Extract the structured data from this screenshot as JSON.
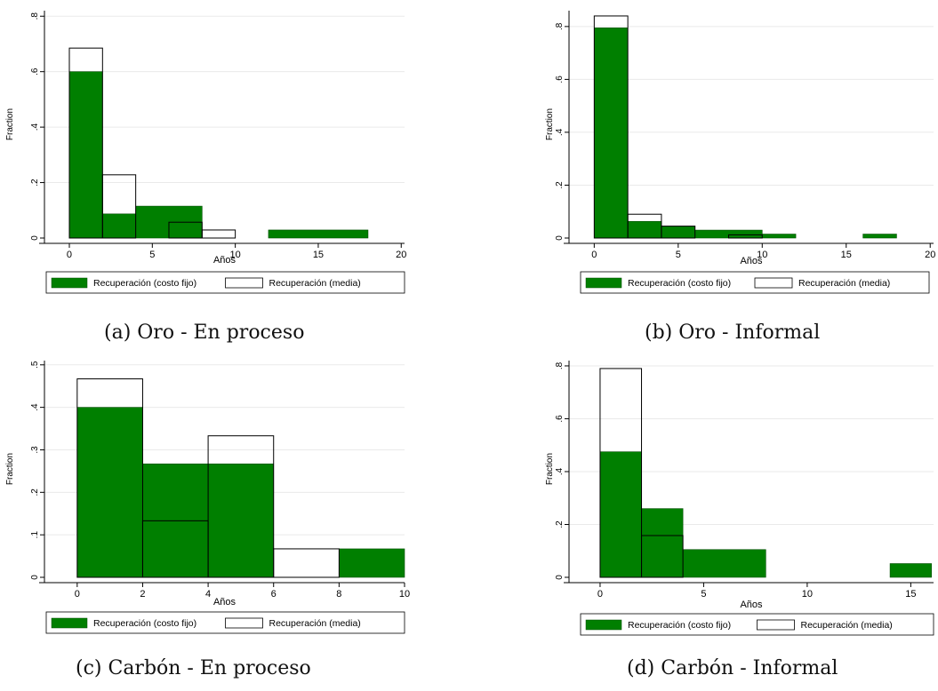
{
  "legend": {
    "fixed_label": "Recuperación (costo fijo)",
    "mean_label": "Recuperación (media)"
  },
  "colors": {
    "green": "#007f00",
    "outline": "#000000",
    "grid": "#eaeaea"
  },
  "chart_data": [
    {
      "type": "bar",
      "caption": "(a) Oro - En proceso",
      "xlabel": "Años",
      "ylabel": "Fraction",
      "xlim": [
        -1.5,
        20.2
      ],
      "ylim": [
        0,
        0.82
      ],
      "xticks": [
        0,
        5,
        10,
        15,
        20
      ],
      "xtick_labels": [
        "0",
        "5",
        "10",
        "15",
        "20"
      ],
      "yticks": [
        0,
        0.2,
        0.4,
        0.6,
        0.8
      ],
      "ytick_labels": [
        "0",
        ".2",
        ".4",
        ".6",
        ".8"
      ],
      "grid": true,
      "legend_position": "bottom",
      "series": [
        {
          "name": "Recuperación (costo fijo)",
          "style": "filled",
          "bins": [
            [
              0,
              2,
              0.6
            ],
            [
              2,
              4,
              0.087
            ],
            [
              4,
              8,
              0.115
            ],
            [
              12,
              18,
              0.029
            ]
          ]
        },
        {
          "name": "Recuperación (media)",
          "style": "outline",
          "bins": [
            [
              0,
              2,
              0.685
            ],
            [
              2,
              4,
              0.228
            ],
            [
              6,
              8,
              0.057
            ],
            [
              8,
              10,
              0.029
            ]
          ]
        }
      ]
    },
    {
      "type": "bar",
      "caption": "(b) Oro - Informal",
      "xlabel": "Años",
      "ylabel": "Fraction",
      "xlim": [
        -1.5,
        20.2
      ],
      "ylim": [
        0,
        0.86
      ],
      "xticks": [
        0,
        5,
        10,
        15,
        20
      ],
      "xtick_labels": [
        "0",
        "5",
        "10",
        "15",
        "20"
      ],
      "yticks": [
        0,
        0.2,
        0.4,
        0.6,
        0.8
      ],
      "ytick_labels": [
        "0",
        ".2",
        ".4",
        ".6",
        ".8"
      ],
      "grid": true,
      "legend_position": "bottom",
      "series": [
        {
          "name": "Recuperación (costo fijo)",
          "style": "filled",
          "bins": [
            [
              0,
              2,
              0.795
            ],
            [
              2,
              4,
              0.063
            ],
            [
              4,
              6,
              0.045
            ],
            [
              6,
              10,
              0.03
            ],
            [
              10,
              12,
              0.015
            ],
            [
              16,
              18,
              0.015
            ]
          ]
        },
        {
          "name": "Recuperación (media)",
          "style": "outline",
          "bins": [
            [
              0,
              2,
              0.84
            ],
            [
              2,
              4,
              0.09
            ],
            [
              4,
              6,
              0.045
            ],
            [
              8,
              10,
              0.012
            ]
          ]
        }
      ]
    },
    {
      "type": "bar",
      "caption": "(c) Carbón - En proceso",
      "xlabel": "Años",
      "ylabel": "Fraction",
      "xlim": [
        -1,
        10
      ],
      "ylim": [
        0,
        0.51
      ],
      "xticks": [
        0,
        2,
        4,
        6,
        8,
        10
      ],
      "xtick_labels": [
        "0",
        "2",
        "4",
        "6",
        "8",
        "10"
      ],
      "yticks": [
        0,
        0.1,
        0.2,
        0.3,
        0.4,
        0.5
      ],
      "ytick_labels": [
        "0",
        ".1",
        ".2",
        ".3",
        ".4",
        ".5"
      ],
      "grid": true,
      "legend_position": "bottom",
      "series": [
        {
          "name": "Recuperación (costo fijo)",
          "style": "filled",
          "bins": [
            [
              0,
              2,
              0.4
            ],
            [
              2,
              6,
              0.267
            ],
            [
              8,
              10,
              0.067
            ]
          ]
        },
        {
          "name": "Recuperación (media)",
          "style": "outline",
          "bins": [
            [
              0,
              2,
              0.467
            ],
            [
              2,
              4,
              0.133
            ],
            [
              4,
              6,
              0.333
            ],
            [
              6,
              8,
              0.067
            ]
          ]
        }
      ]
    },
    {
      "type": "bar",
      "caption": "(d) Carbón - Informal",
      "xlabel": "Años",
      "ylabel": "Fraction",
      "xlim": [
        -1.5,
        16.1
      ],
      "ylim": [
        0,
        0.82
      ],
      "xticks": [
        0,
        5,
        10,
        15
      ],
      "xtick_labels": [
        "0",
        "5",
        "10",
        "15"
      ],
      "yticks": [
        0,
        0.2,
        0.4,
        0.6,
        0.8
      ],
      "ytick_labels": [
        "0",
        ".2",
        ".4",
        ".6",
        ".8"
      ],
      "grid": true,
      "legend_position": "bottom",
      "series": [
        {
          "name": "Recuperación (costo fijo)",
          "style": "filled",
          "bins": [
            [
              0,
              2,
              0.475
            ],
            [
              2,
              4,
              0.26
            ],
            [
              4,
              8,
              0.105
            ],
            [
              14,
              16,
              0.052
            ]
          ]
        },
        {
          "name": "Recuperación (media)",
          "style": "outline",
          "bins": [
            [
              0,
              2,
              0.79
            ],
            [
              2,
              4,
              0.158
            ]
          ]
        }
      ]
    }
  ]
}
